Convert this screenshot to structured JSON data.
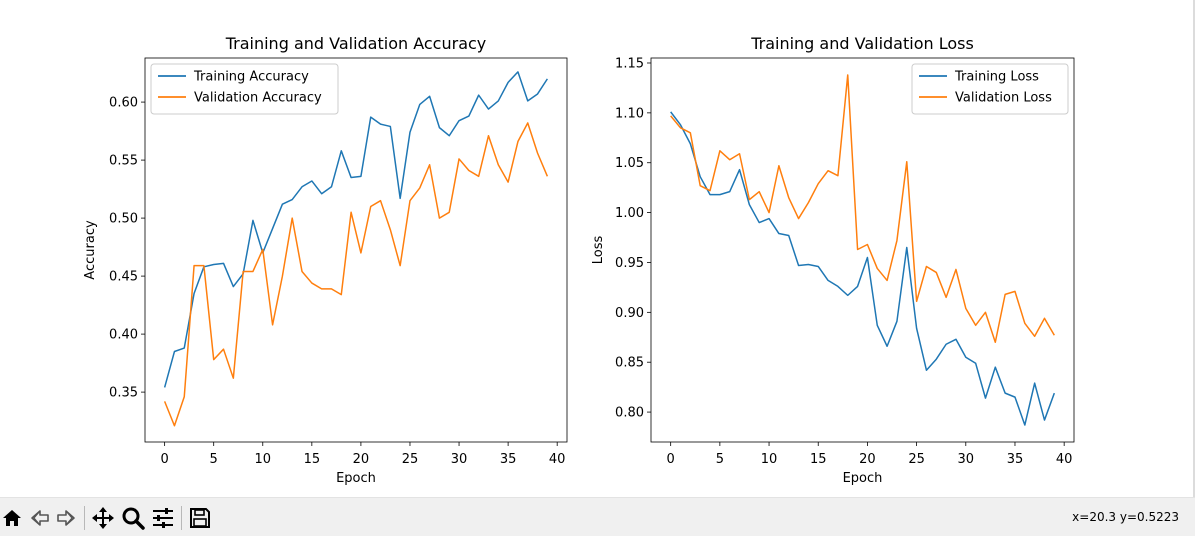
{
  "chart_data": [
    {
      "type": "line",
      "title": "Training and Validation Accuracy",
      "xlabel": "Epoch",
      "ylabel": "Accuracy",
      "xlim": [
        -2,
        41
      ],
      "ylim": [
        0.307,
        0.638
      ],
      "xticks": [
        0,
        5,
        10,
        15,
        20,
        25,
        30,
        35,
        40
      ],
      "yticks": [
        0.35,
        0.4,
        0.45,
        0.5,
        0.55,
        0.6
      ],
      "ytick_labels": [
        "0.35",
        "0.40",
        "0.45",
        "0.50",
        "0.55",
        "0.60"
      ],
      "legend": "upper left",
      "grid": false,
      "x": [
        0,
        1,
        2,
        3,
        4,
        5,
        6,
        7,
        8,
        9,
        10,
        11,
        12,
        13,
        14,
        15,
        16,
        17,
        18,
        19,
        20,
        21,
        22,
        23,
        24,
        25,
        26,
        27,
        28,
        29,
        30,
        31,
        32,
        33,
        34,
        35,
        36,
        37,
        38,
        39
      ],
      "series": [
        {
          "name": "Training Accuracy",
          "color": "#1f77b4",
          "values": [
            0.354,
            0.385,
            0.388,
            0.435,
            0.458,
            0.46,
            0.461,
            0.441,
            0.452,
            0.498,
            0.47,
            0.491,
            0.512,
            0.516,
            0.527,
            0.532,
            0.521,
            0.527,
            0.558,
            0.535,
            0.536,
            0.587,
            0.581,
            0.579,
            0.517,
            0.574,
            0.598,
            0.605,
            0.578,
            0.571,
            0.584,
            0.588,
            0.606,
            0.594,
            0.601,
            0.617,
            0.626,
            0.601,
            0.607,
            0.62
          ]
        },
        {
          "name": "Validation Accuracy",
          "color": "#ff7f0e",
          "values": [
            0.342,
            0.321,
            0.346,
            0.459,
            0.459,
            0.378,
            0.387,
            0.362,
            0.454,
            0.454,
            0.473,
            0.408,
            0.45,
            0.5,
            0.454,
            0.444,
            0.439,
            0.439,
            0.434,
            0.505,
            0.47,
            0.51,
            0.515,
            0.49,
            0.459,
            0.515,
            0.526,
            0.546,
            0.5,
            0.505,
            0.551,
            0.541,
            0.536,
            0.571,
            0.546,
            0.531,
            0.566,
            0.582,
            0.556,
            0.536
          ]
        }
      ]
    },
    {
      "type": "line",
      "title": "Training and Validation Loss",
      "xlabel": "Epoch",
      "ylabel": "Loss",
      "xlim": [
        -2,
        41
      ],
      "ylim": [
        0.77,
        1.155
      ],
      "xticks": [
        0,
        5,
        10,
        15,
        20,
        25,
        30,
        35,
        40
      ],
      "yticks": [
        0.8,
        0.85,
        0.9,
        0.95,
        1.0,
        1.05,
        1.1,
        1.15
      ],
      "ytick_labels": [
        "0.80",
        "0.85",
        "0.90",
        "0.95",
        "1.00",
        "1.05",
        "1.10",
        "1.15"
      ],
      "legend": "upper right",
      "grid": false,
      "x": [
        0,
        1,
        2,
        3,
        4,
        5,
        6,
        7,
        8,
        9,
        10,
        11,
        12,
        13,
        14,
        15,
        16,
        17,
        18,
        19,
        20,
        21,
        22,
        23,
        24,
        25,
        26,
        27,
        28,
        29,
        30,
        31,
        32,
        33,
        34,
        35,
        36,
        37,
        38,
        39
      ],
      "series": [
        {
          "name": "Training Loss",
          "color": "#1f77b4",
          "values": [
            1.101,
            1.088,
            1.069,
            1.036,
            1.018,
            1.018,
            1.021,
            1.043,
            1.008,
            0.99,
            0.994,
            0.979,
            0.977,
            0.947,
            0.948,
            0.946,
            0.932,
            0.926,
            0.917,
            0.926,
            0.955,
            0.887,
            0.866,
            0.891,
            0.965,
            0.884,
            0.842,
            0.853,
            0.868,
            0.873,
            0.855,
            0.849,
            0.814,
            0.845,
            0.819,
            0.815,
            0.787,
            0.829,
            0.792,
            0.819
          ]
        },
        {
          "name": "Validation Loss",
          "color": "#ff7f0e",
          "values": [
            1.097,
            1.085,
            1.08,
            1.027,
            1.022,
            1.062,
            1.053,
            1.059,
            1.013,
            1.021,
            1.0,
            1.047,
            1.015,
            0.994,
            1.01,
            1.029,
            1.042,
            1.037,
            1.138,
            0.963,
            0.968,
            0.944,
            0.932,
            0.972,
            1.051,
            0.911,
            0.946,
            0.94,
            0.915,
            0.943,
            0.904,
            0.887,
            0.9,
            0.87,
            0.918,
            0.921,
            0.889,
            0.876,
            0.894,
            0.877
          ]
        }
      ]
    }
  ],
  "toolbar": {
    "home_icon": "home-icon",
    "back_icon": "back-arrow-icon",
    "forward_icon": "forward-arrow-icon",
    "pan_icon": "pan-move-icon",
    "zoom_icon": "zoom-magnifier-icon",
    "configure_icon": "configure-subplots-icon",
    "save_icon": "save-floppy-icon",
    "coord_readout": "x=20.3 y=0.5223"
  }
}
